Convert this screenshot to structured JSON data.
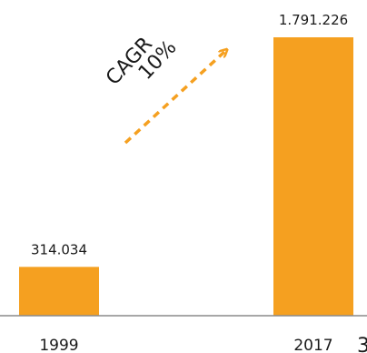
{
  "chart_data": {
    "type": "bar",
    "categories": [
      "1999",
      "2017"
    ],
    "values": [
      314034,
      1791226
    ],
    "value_labels": [
      "314.034",
      "1.791.226"
    ],
    "bar_color": "#F5A020",
    "grid": false,
    "annotation": {
      "line1": "CAGR",
      "line2": "10%",
      "arrow_style": "dashed-up-right",
      "color": "#F5A020"
    }
  },
  "page_number": "3"
}
